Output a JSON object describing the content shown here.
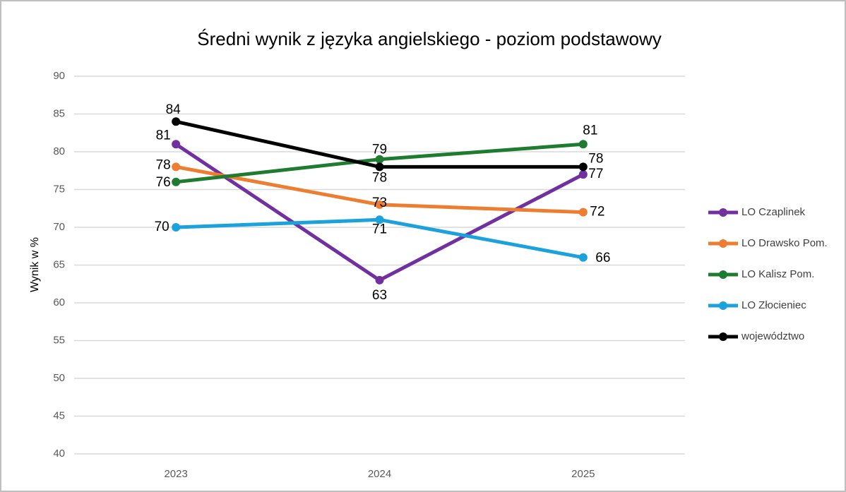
{
  "chart_data": {
    "type": "line",
    "title": "Średni wynik z języka angielskiego - poziom podstawowy",
    "y_label": "Wynik w %",
    "categories": [
      "2023",
      "2024",
      "2025"
    ],
    "series": [
      {
        "name": "LO Czaplinek",
        "color": "#7030a0",
        "values": [
          81,
          63,
          77
        ]
      },
      {
        "name": "LO Drawsko Pom.",
        "color": "#ed7d31",
        "values": [
          78,
          73,
          72
        ]
      },
      {
        "name": "LO Kalisz Pom.",
        "color": "#1e7b30",
        "values": [
          76,
          79,
          81
        ]
      },
      {
        "name": "LO Złocieniec",
        "color": "#1ba1db",
        "values": [
          70,
          71,
          66
        ]
      },
      {
        "name": "województwo",
        "color": "#000000",
        "values": [
          84,
          78,
          78
        ]
      }
    ],
    "ylim": [
      40,
      90
    ],
    "yticks": [
      40,
      45,
      50,
      55,
      60,
      65,
      70,
      75,
      80,
      85,
      90
    ],
    "grid": true,
    "legend": "right"
  }
}
